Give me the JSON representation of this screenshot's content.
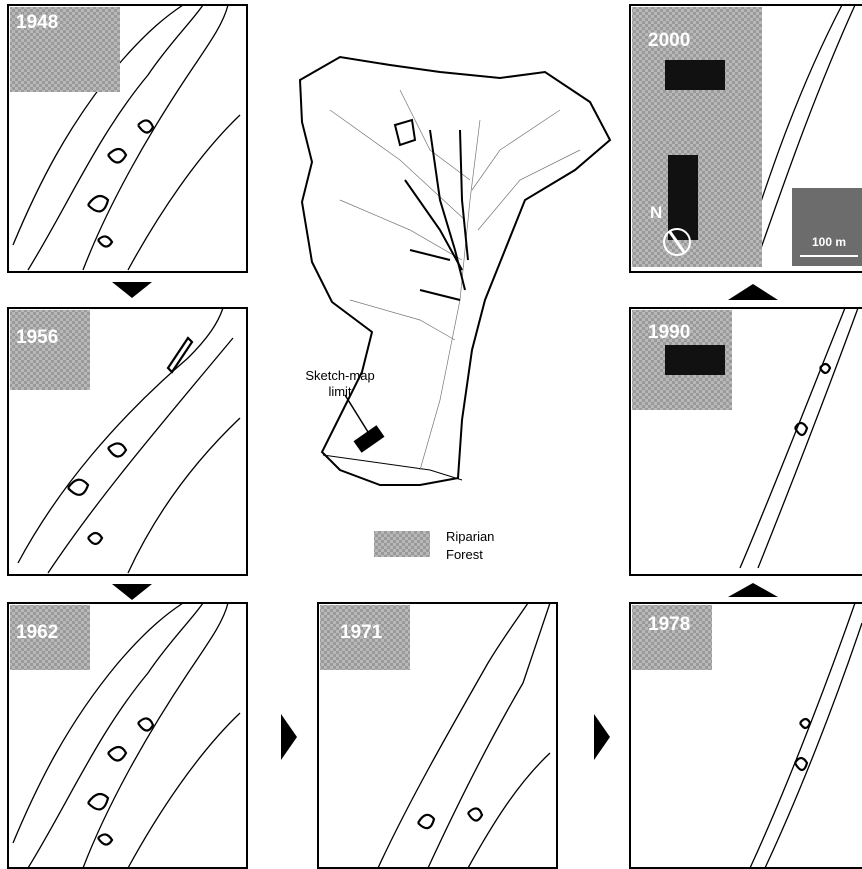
{
  "panels": [
    {
      "year": "1948"
    },
    {
      "year": "1956"
    },
    {
      "year": "1962"
    },
    {
      "year": "1971"
    },
    {
      "year": "1978"
    },
    {
      "year": "1990"
    },
    {
      "year": "2000"
    }
  ],
  "basin_map": {
    "annotation_line1": "Sketch-map",
    "annotation_line2": "limit"
  },
  "legend": {
    "line1": "Riparian",
    "line2": "Forest"
  },
  "scale": {
    "north": "N",
    "scale_bar": "100 m"
  }
}
